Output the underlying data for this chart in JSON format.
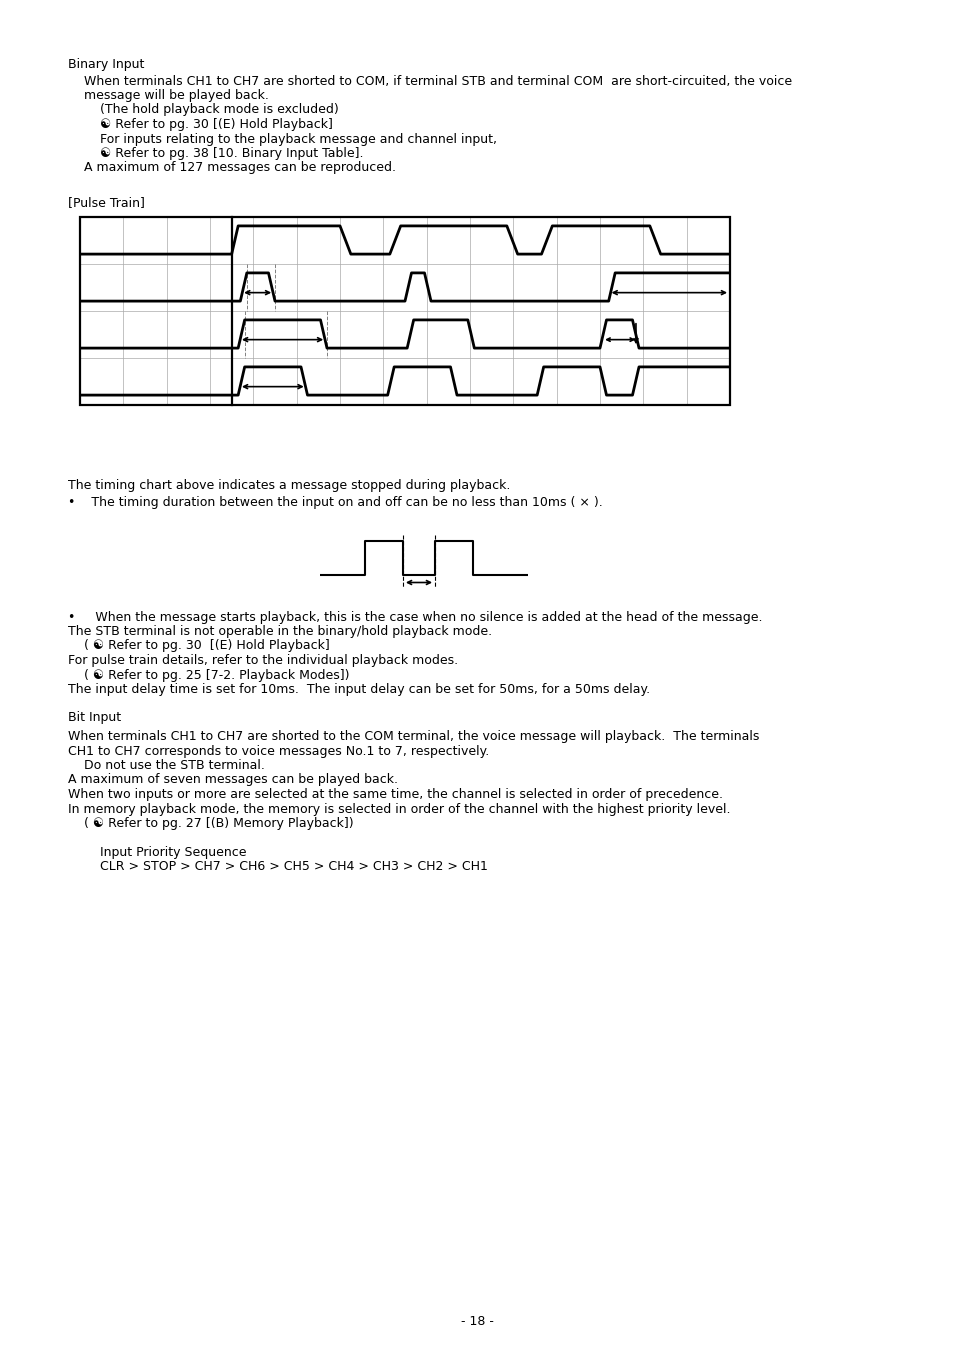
{
  "bg_color": "#ffffff",
  "text_color": "#000000",
  "page_number": "- 18 -",
  "section1_title": "Binary Input",
  "section1_lines": [
    "    When terminals CH1 to CH7 are shorted to COM, if terminal STB and terminal COM  are short-circuited, the voice",
    "    message will be played back.",
    "        (The hold playback mode is excluded)",
    "        ☯ Refer to pg. 30 [(E) Hold Playback]",
    "        For inputs relating to the playback message and channel input,",
    "        ☯ Refer to pg. 38 [10. Binary Input Table].",
    "    A maximum of 127 messages can be reproduced."
  ],
  "pulse_train_label": "[Pulse Train]",
  "timing_note1": "The timing chart above indicates a message stopped during playback.",
  "timing_note2": "•    The timing duration between the input on and off can be no less than 10ms ( × ).",
  "bullet_notes": [
    "•     When the message starts playback, this is the case when no silence is added at the head of the message.",
    "The STB terminal is not operable in the binary/hold playback mode.",
    "    ( ☯ Refer to pg. 30  [(E) Hold Playback]",
    "For pulse train details, refer to the individual playback modes.",
    "    ( ☯ Refer to pg. 25 [7-2. Playback Modes])",
    "The input delay time is set for 10ms.  The input delay can be set for 50ms, for a 50ms delay."
  ],
  "section2_title": "Bit Input",
  "section2_lines": [
    "When terminals CH1 to CH7 are shorted to the COM terminal, the voice message will playback.  The terminals",
    "CH1 to CH7 corresponds to voice messages No.1 to 7, respectively.",
    "    Do not use the STB terminal.",
    "A maximum of seven messages can be played back.",
    "When two inputs or more are selected at the same time, the channel is selected in order of precedence.",
    "In memory playback mode, the memory is selected in order of the channel with the highest priority level.",
    "    ( ☯ Refer to pg. 27 [(B) Memory Playback])"
  ],
  "priority_title": "        Input Priority Sequence",
  "priority_seq": "        CLR > STOP > CH7 > CH6 > CH5 > CH4 > CH3 > CH2 > CH1"
}
